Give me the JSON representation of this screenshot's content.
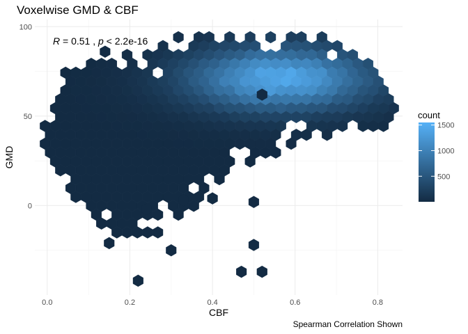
{
  "chart_data": {
    "type": "hexbin",
    "title": "Voxelwise GMD & CBF",
    "xlabel": "CBF",
    "ylabel": "GMD",
    "caption": "Spearman Correlation Shown",
    "annotation": {
      "r_symbol": "R",
      "r_text": " = 0.51 , ",
      "p_symbol": "p",
      "p_text": " < 2.2e-16",
      "position": "top-left"
    },
    "xlim": [
      -0.03,
      0.86
    ],
    "ylim": [
      -50,
      104
    ],
    "x_ticks": [
      0.0,
      0.2,
      0.4,
      0.6,
      0.8
    ],
    "x_tick_labels": [
      "0.0",
      "0.2",
      "0.4",
      "0.6",
      "0.8"
    ],
    "y_ticks": [
      0,
      50,
      100
    ],
    "y_tick_labels": [
      "0",
      "50",
      "100"
    ],
    "grid": true,
    "legend": {
      "title": "count",
      "position": "right",
      "ticks": [
        500,
        1000,
        1500
      ],
      "tick_labels": [
        "500",
        "1000",
        "1500"
      ],
      "range": [
        1,
        1550
      ]
    },
    "colors": {
      "low": "#132B43",
      "high": "#56B1F7"
    },
    "density_peak": {
      "x": 0.565,
      "y": 71,
      "count": 1550
    },
    "sparse_points": [
      {
        "x": 0.14,
        "y": 86
      },
      {
        "x": 0.52,
        "y": 62
      },
      {
        "x": 0.33,
        "y": 3
      },
      {
        "x": 0.5,
        "y": 2
      },
      {
        "x": 0.5,
        "y": -22
      },
      {
        "x": 0.47,
        "y": -37
      },
      {
        "x": 0.52,
        "y": -37
      },
      {
        "x": 0.3,
        "y": -25
      },
      {
        "x": 0.22,
        "y": -42
      },
      {
        "x": 0.15,
        "y": -21
      },
      {
        "x": 0.4,
        "y": 4
      },
      {
        "x": 0.24,
        "y": -2
      }
    ],
    "outline": {
      "x_bins": [
        0.0,
        0.05,
        0.1,
        0.15,
        0.2,
        0.25,
        0.3,
        0.35,
        0.4,
        0.45,
        0.5,
        0.55,
        0.6,
        0.65,
        0.7,
        0.75,
        0.8,
        0.85
      ],
      "y_upper": [
        45,
        78,
        80,
        83,
        85,
        90,
        94,
        95,
        97,
        98,
        99,
        98,
        99,
        96,
        90,
        85,
        75,
        60
      ],
      "y_lower": [
        30,
        5,
        -5,
        -18,
        -20,
        -18,
        -15,
        -5,
        10,
        20,
        25,
        28,
        35,
        38,
        40,
        40,
        43,
        48
      ]
    }
  }
}
